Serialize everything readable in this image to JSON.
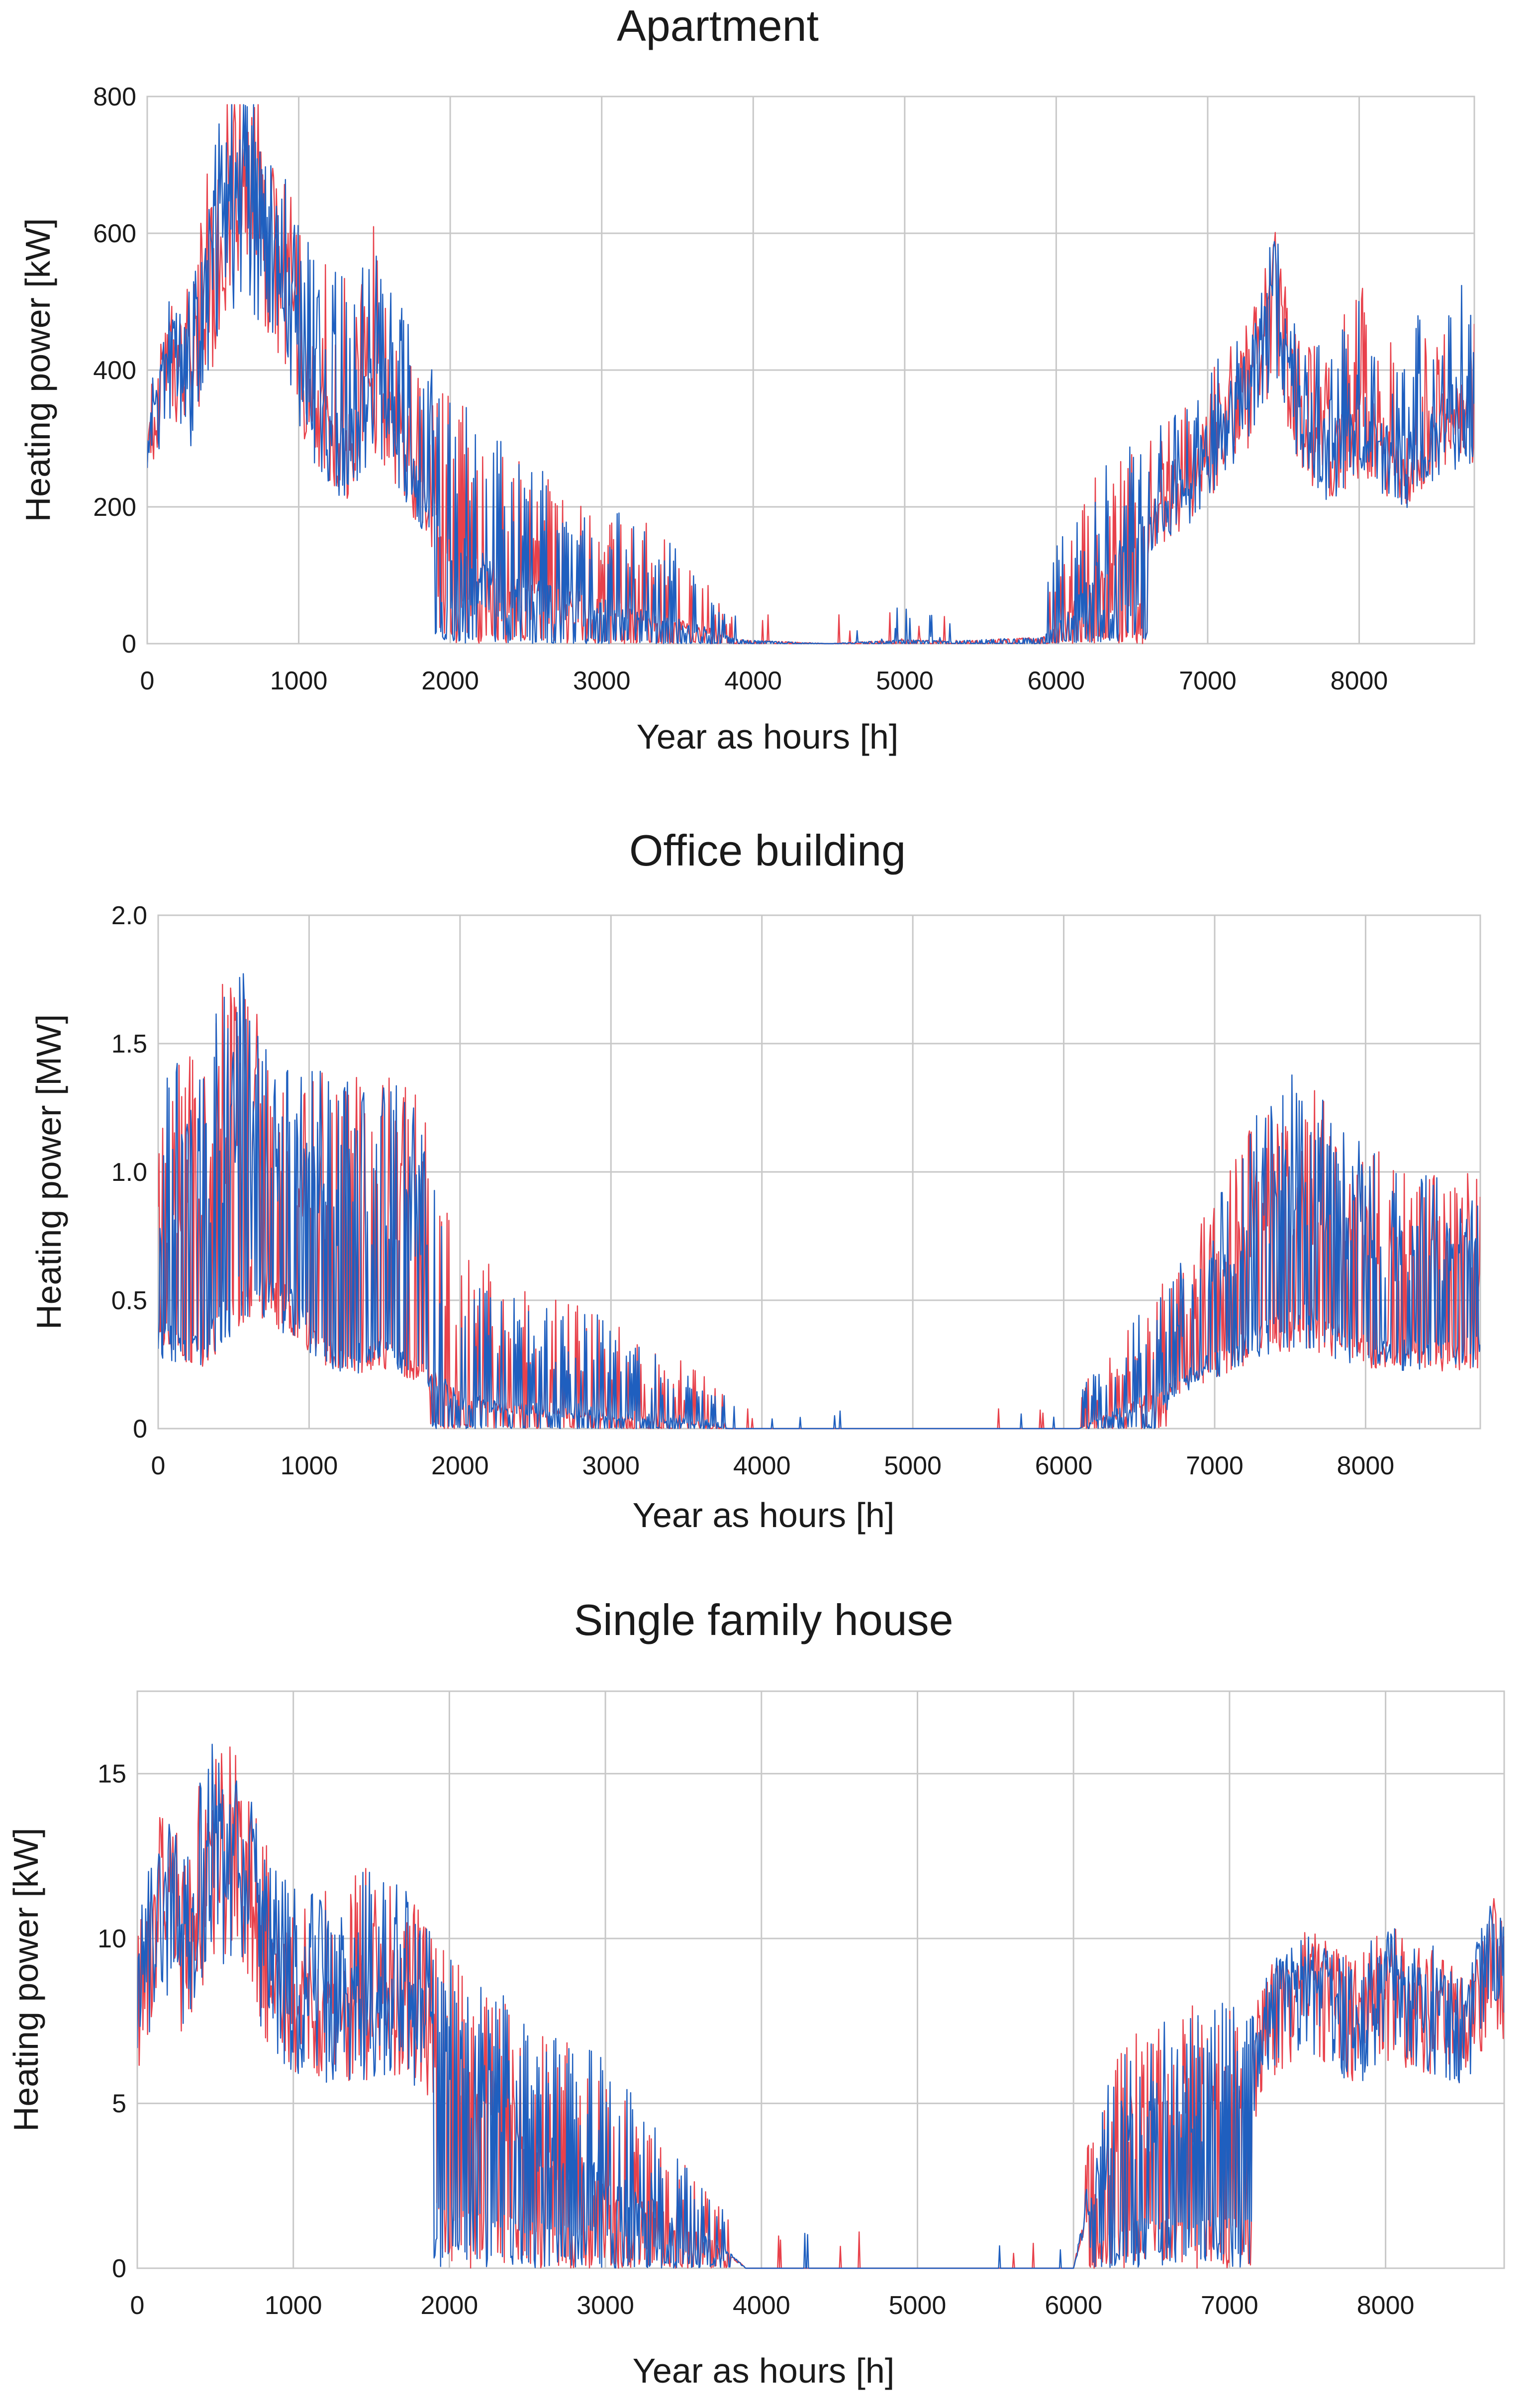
{
  "chart_data": [
    {
      "type": "line",
      "title": "Apartment",
      "xlabel": "Year as hours [h]",
      "ylabel": "Heating power [kW]",
      "xlim": [
        0,
        8760
      ],
      "ylim": [
        0,
        800
      ],
      "xticks": [
        0,
        1000,
        2000,
        3000,
        4000,
        5000,
        6000,
        7000,
        8000
      ],
      "yticks": [
        0,
        200,
        400,
        600,
        800
      ],
      "grid": true,
      "colors": {
        "series_a": "#e8414b",
        "series_b": "#1f5fbf"
      },
      "seed": 11,
      "envelope": [
        [
          0,
          290
        ],
        [
          150,
          420
        ],
        [
          300,
          360
        ],
        [
          500,
          600
        ],
        [
          650,
          650
        ],
        [
          800,
          560
        ],
        [
          950,
          450
        ],
        [
          1100,
          330
        ],
        [
          1300,
          260
        ],
        [
          1500,
          360
        ],
        [
          1650,
          290
        ],
        [
          1800,
          200
        ],
        [
          2000,
          140
        ],
        [
          2200,
          110
        ],
        [
          2400,
          85
        ],
        [
          2700,
          70
        ],
        [
          3000,
          55
        ],
        [
          3300,
          40
        ],
        [
          3700,
          20
        ],
        [
          3900,
          5
        ],
        [
          4500,
          0
        ],
        [
          5000,
          5
        ],
        [
          5300,
          3
        ],
        [
          5900,
          8
        ],
        [
          6100,
          45
        ],
        [
          6300,
          110
        ],
        [
          6600,
          165
        ],
        [
          6900,
          230
        ],
        [
          7100,
          300
        ],
        [
          7300,
          380
        ],
        [
          7450,
          500
        ],
        [
          7600,
          320
        ],
        [
          7800,
          260
        ],
        [
          8000,
          310
        ],
        [
          8300,
          250
        ],
        [
          8500,
          300
        ],
        [
          8700,
          330
        ]
      ],
      "spikes": [
        [
          0,
          0
        ],
        [
          400,
          220
        ],
        [
          900,
          200
        ],
        [
          1300,
          300
        ],
        [
          1700,
          220
        ],
        [
          2000,
          230
        ],
        [
          2500,
          200
        ],
        [
          3000,
          160
        ],
        [
          3500,
          120
        ],
        [
          3800,
          40
        ],
        [
          4200,
          40
        ],
        [
          5200,
          50
        ],
        [
          5600,
          20
        ],
        [
          6000,
          120
        ],
        [
          6300,
          160
        ],
        [
          6600,
          140
        ],
        [
          7000,
          130
        ],
        [
          7500,
          110
        ],
        [
          8000,
          220
        ],
        [
          8700,
          200
        ]
      ],
      "density": [
        [
          0,
          0.22
        ],
        [
          1500,
          0.26
        ],
        [
          1900,
          0.48
        ],
        [
          3800,
          0.45
        ],
        [
          3900,
          0.02
        ],
        [
          4800,
          0.02
        ],
        [
          5000,
          0.12
        ],
        [
          5300,
          0.1
        ],
        [
          5400,
          0.01
        ],
        [
          5900,
          0.01
        ],
        [
          6000,
          0.35
        ],
        [
          6600,
          0.35
        ],
        [
          6800,
          0.22
        ],
        [
          8760,
          0.22
        ]
      ],
      "floor_band": [
        [
          1900,
          6600
        ]
      ]
    },
    {
      "type": "line",
      "title": "Office building",
      "xlabel": "Year as hours [h]",
      "ylabel": "Heating power [MW]",
      "xlim": [
        0,
        8760
      ],
      "ylim": [
        0,
        2.0
      ],
      "xticks": [
        0,
        1000,
        2000,
        3000,
        4000,
        5000,
        6000,
        7000,
        8000
      ],
      "yticks": [
        0,
        0.5,
        1.0,
        1.5,
        2.0
      ],
      "ytick_labels": [
        "0",
        "0.5",
        "1.0",
        "1.5",
        "2.0"
      ],
      "grid": true,
      "colors": {
        "series_a": "#e8414b",
        "series_b": "#1f5fbf"
      },
      "seed": 23,
      "envelope": [
        [
          0,
          0.35
        ],
        [
          300,
          0.3
        ],
        [
          600,
          0.55
        ],
        [
          900,
          0.45
        ],
        [
          1200,
          0.25
        ],
        [
          1500,
          0.3
        ],
        [
          1800,
          0.2
        ],
        [
          2000,
          0.12
        ],
        [
          2500,
          0.06
        ],
        [
          3000,
          0.04
        ],
        [
          3500,
          0.02
        ],
        [
          3800,
          0.0
        ],
        [
          6100,
          0.0
        ],
        [
          6300,
          0.05
        ],
        [
          6700,
          0.15
        ],
        [
          7000,
          0.25
        ],
        [
          7300,
          0.35
        ],
        [
          7600,
          0.4
        ],
        [
          8000,
          0.3
        ],
        [
          8400,
          0.28
        ],
        [
          8760,
          0.3
        ]
      ],
      "spikes": [
        [
          0,
          1.0
        ],
        [
          500,
          1.4
        ],
        [
          700,
          1.0
        ],
        [
          1300,
          1.1
        ],
        [
          1700,
          1.1
        ],
        [
          2000,
          0.6
        ],
        [
          2400,
          0.5
        ],
        [
          3000,
          0.4
        ],
        [
          3600,
          0.2
        ],
        [
          3800,
          0.1
        ],
        [
          4200,
          0.08
        ],
        [
          5200,
          0.1
        ],
        [
          6000,
          0.1
        ],
        [
          6400,
          0.3
        ],
        [
          6800,
          0.5
        ],
        [
          7300,
          0.9
        ],
        [
          7500,
          1.0
        ],
        [
          8000,
          0.8
        ],
        [
          8500,
          0.7
        ],
        [
          8760,
          0.7
        ]
      ],
      "density": [
        [
          0,
          0.5
        ],
        [
          3700,
          0.5
        ],
        [
          3800,
          0.02
        ],
        [
          6100,
          0.02
        ],
        [
          6150,
          0.5
        ],
        [
          8760,
          0.5
        ]
      ],
      "floor_band": [
        [
          1800,
          3800
        ],
        [
          6150,
          6700
        ]
      ]
    },
    {
      "type": "line",
      "title": "Single family house",
      "xlabel": "Year as hours [h]",
      "ylabel": "Heating power [kW]",
      "xlim": [
        0,
        8760
      ],
      "ylim": [
        0,
        17.5
      ],
      "xticks": [
        0,
        1000,
        2000,
        3000,
        4000,
        5000,
        6000,
        7000,
        8000
      ],
      "yticks": [
        0,
        5,
        10,
        15
      ],
      "grid": true,
      "colors": {
        "series_a": "#e8414b",
        "series_b": "#1f5fbf"
      },
      "seed": 37,
      "envelope": [
        [
          0,
          7.5
        ],
        [
          150,
          10.5
        ],
        [
          300,
          9.0
        ],
        [
          500,
          12.0
        ],
        [
          650,
          11.5
        ],
        [
          800,
          9.0
        ],
        [
          1000,
          7.5
        ],
        [
          1300,
          7.0
        ],
        [
          1600,
          7.5
        ],
        [
          1800,
          7.0
        ],
        [
          2000,
          6.0
        ],
        [
          2300,
          5.0
        ],
        [
          2600,
          3.5
        ],
        [
          3000,
          2.5
        ],
        [
          3400,
          1.5
        ],
        [
          3700,
          0.8
        ],
        [
          3900,
          0.0
        ],
        [
          6000,
          0.0
        ],
        [
          6100,
          2.0
        ],
        [
          6300,
          4.0
        ],
        [
          6600,
          4.5
        ],
        [
          6900,
          5.0
        ],
        [
          7100,
          5.0
        ],
        [
          7300,
          7.5
        ],
        [
          7500,
          8.5
        ],
        [
          7800,
          7.0
        ],
        [
          8000,
          8.0
        ],
        [
          8300,
          7.5
        ],
        [
          8500,
          7.0
        ],
        [
          8700,
          9.5
        ],
        [
          8760,
          8.5
        ]
      ],
      "spikes": [
        [
          0,
          3.0
        ],
        [
          500,
          4.5
        ],
        [
          1000,
          4.0
        ],
        [
          1500,
          5.0
        ],
        [
          1700,
          4.5
        ],
        [
          2000,
          3.5
        ],
        [
          2500,
          3.5
        ],
        [
          3000,
          4.0
        ],
        [
          3500,
          2.0
        ],
        [
          3900,
          1.0
        ],
        [
          4500,
          1.5
        ],
        [
          5000,
          1.5
        ],
        [
          5600,
          1.0
        ],
        [
          6000,
          1.5
        ],
        [
          6500,
          3.5
        ],
        [
          7000,
          3.0
        ],
        [
          7500,
          2.0
        ],
        [
          8000,
          2.5
        ],
        [
          8700,
          2.0
        ]
      ],
      "density": [
        [
          0,
          0.35
        ],
        [
          1800,
          0.35
        ],
        [
          2000,
          0.5
        ],
        [
          3750,
          0.5
        ],
        [
          3800,
          0.02
        ],
        [
          6050,
          0.02
        ],
        [
          6100,
          0.5
        ],
        [
          7100,
          0.5
        ],
        [
          7200,
          0.35
        ],
        [
          8760,
          0.35
        ]
      ],
      "floor_band": [
        [
          1900,
          3800
        ],
        [
          6100,
          7150
        ]
      ]
    }
  ]
}
